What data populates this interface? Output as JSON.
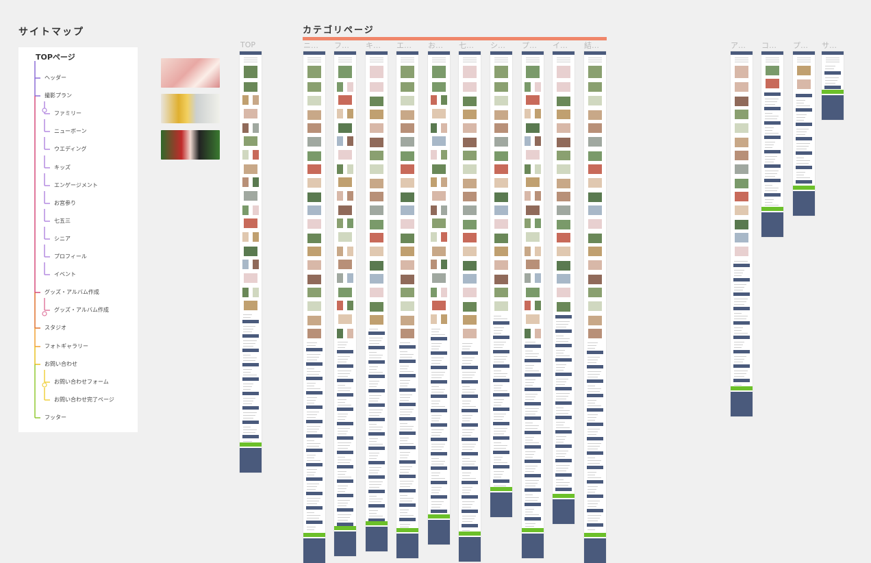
{
  "sitemap": {
    "title": "サイトマップ",
    "root": "TOPページ",
    "items": [
      {
        "label": "ヘッダー",
        "level": 1,
        "color": "#8a6ad6"
      },
      {
        "label": "撮影プラン",
        "level": 1,
        "color": "#8a6ad6"
      },
      {
        "label": "ファミリー",
        "level": 2,
        "color": "#b48ae0"
      },
      {
        "label": "ニューボーン",
        "level": 2,
        "color": "#b48ae0"
      },
      {
        "label": "ウエディング",
        "level": 2,
        "color": "#b48ae0"
      },
      {
        "label": "キッズ",
        "level": 2,
        "color": "#b48ae0"
      },
      {
        "label": "エンゲージメント",
        "level": 2,
        "color": "#b48ae0"
      },
      {
        "label": "お宮参り",
        "level": 2,
        "color": "#b48ae0"
      },
      {
        "label": "七五三",
        "level": 2,
        "color": "#b48ae0"
      },
      {
        "label": "シニア",
        "level": 2,
        "color": "#b48ae0"
      },
      {
        "label": "プロフィール",
        "level": 2,
        "color": "#b48ae0"
      },
      {
        "label": "イベント",
        "level": 2,
        "color": "#b48ae0"
      },
      {
        "label": "グッズ・アルバム作成",
        "level": 1,
        "color": "#d64a7a"
      },
      {
        "label": "グッズ・アルバム作成",
        "level": 2,
        "color": "#e07aa0"
      },
      {
        "label": "スタジオ",
        "level": 1,
        "color": "#e0702a"
      },
      {
        "label": "フォトギャラリー",
        "level": 1,
        "color": "#f0a030"
      },
      {
        "label": "お問い合わせ",
        "level": 1,
        "color": "#e8c020"
      },
      {
        "label": "お問い合わせフォーム",
        "level": 2,
        "color": "#f0d040"
      },
      {
        "label": "お問い合わせ完了ページ",
        "level": 2,
        "color": "#f0d040"
      },
      {
        "label": "フッター",
        "level": 1,
        "color": "#90c830"
      }
    ]
  },
  "top_label": "TOP",
  "category": {
    "title": "カテゴリページ",
    "accent": "#f0866a",
    "pages": [
      "ニ…",
      "フ…",
      "キ…",
      "エ…",
      "お…",
      "七…",
      "シ…",
      "プ…",
      "イ…",
      "結…"
    ]
  },
  "other_pages": [
    "ア…",
    "コ…",
    "プ…",
    "サ…"
  ],
  "colors": {
    "navy": "#4a5a7c",
    "green": "#6cc02a",
    "panel": "#ffffff",
    "bg": "#f0f0f0"
  }
}
